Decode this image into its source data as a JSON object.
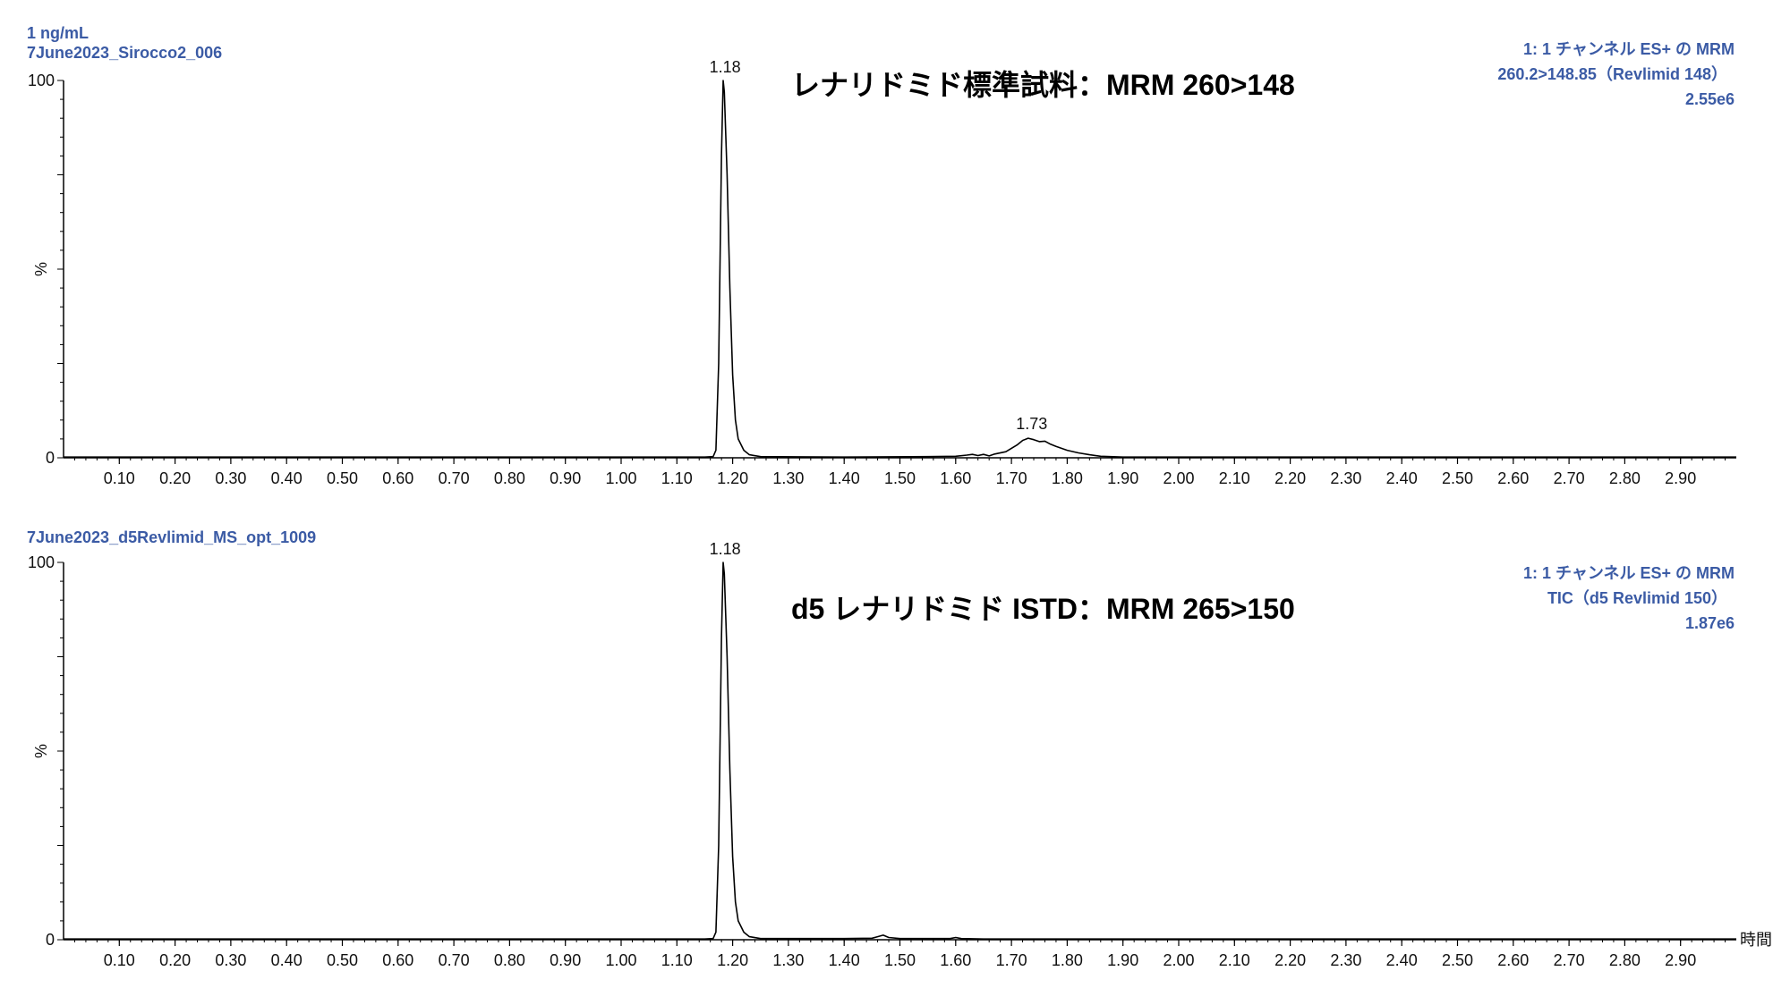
{
  "chart_data": [
    {
      "type": "line",
      "sample_line1": "1 ng/mL",
      "sample_line2": "7June2023_Sirocco2_006",
      "title": "レナリドミド標準試料：MRM 260>148",
      "info_line1": "1: 1 チャンネル ES+ の MRM",
      "info_line2": "260.2>148.85（Revlimid 148）",
      "info_line3": "2.55e6",
      "ylabel": "%",
      "xlabel": "",
      "xlim": [
        0,
        3.0
      ],
      "ylim": [
        0,
        100
      ],
      "y_ticks": [
        "0",
        "100"
      ],
      "x_ticks": [
        "0.10",
        "0.20",
        "0.30",
        "0.40",
        "0.50",
        "0.60",
        "0.70",
        "0.80",
        "0.90",
        "1.00",
        "1.10",
        "1.20",
        "1.30",
        "1.40",
        "1.50",
        "1.60",
        "1.70",
        "1.80",
        "1.90",
        "2.00",
        "2.10",
        "2.20",
        "2.30",
        "2.40",
        "2.50",
        "2.60",
        "2.70",
        "2.80",
        "2.90"
      ],
      "peak_labels": [
        {
          "x": 1.18,
          "y": 100,
          "text": "1.18"
        },
        {
          "x": 1.73,
          "y": 5.5,
          "text": "1.73"
        }
      ],
      "series": [
        {
          "x": [
            0,
            1.0,
            1.15,
            1.165,
            1.17,
            1.175,
            1.18,
            1.183,
            1.185,
            1.19,
            1.195,
            1.2,
            1.205,
            1.21,
            1.22,
            1.23,
            1.25,
            1.4,
            1.55,
            1.6,
            1.62,
            1.63,
            1.64,
            1.65,
            1.66,
            1.67,
            1.69,
            1.7,
            1.71,
            1.72,
            1.73,
            1.74,
            1.75,
            1.76,
            1.77,
            1.78,
            1.8,
            1.82,
            1.84,
            1.86,
            1.9,
            2.2,
            3.0
          ],
          "y": [
            0.2,
            0.2,
            0.2,
            0.3,
            2,
            25,
            80,
            100,
            97,
            75,
            45,
            22,
            10,
            5,
            2,
            0.8,
            0.3,
            0.2,
            0.3,
            0.4,
            0.7,
            0.9,
            0.6,
            0.9,
            0.5,
            1.0,
            1.6,
            2.5,
            3.4,
            4.6,
            5.2,
            4.8,
            4.3,
            4.4,
            3.6,
            3.0,
            2.0,
            1.3,
            0.8,
            0.4,
            0.2,
            0.2,
            0.2
          ]
        }
      ]
    },
    {
      "type": "line",
      "sample_line1": "7June2023_d5Revlimid_MS_opt_1009",
      "title": "d5 レナリドミド ISTD：MRM 265>150",
      "info_line1": "1: 1 チャンネル ES+ の MRM",
      "info_line2": "TIC（d5 Revlimid 150）",
      "info_line3": "1.87e6",
      "ylabel": "%",
      "xlabel": "時間",
      "xlim": [
        0,
        3.0
      ],
      "ylim": [
        0,
        100
      ],
      "y_ticks": [
        "0",
        "100"
      ],
      "x_ticks": [
        "0.10",
        "0.20",
        "0.30",
        "0.40",
        "0.50",
        "0.60",
        "0.70",
        "0.80",
        "0.90",
        "1.00",
        "1.10",
        "1.20",
        "1.30",
        "1.40",
        "1.50",
        "1.60",
        "1.70",
        "1.80",
        "1.90",
        "2.00",
        "2.10",
        "2.20",
        "2.30",
        "2.40",
        "2.50",
        "2.60",
        "2.70",
        "2.80",
        "2.90"
      ],
      "peak_labels": [
        {
          "x": 1.18,
          "y": 100,
          "text": "1.18"
        }
      ],
      "series": [
        {
          "x": [
            0,
            1.0,
            1.15,
            1.165,
            1.17,
            1.175,
            1.18,
            1.183,
            1.185,
            1.19,
            1.195,
            1.2,
            1.205,
            1.21,
            1.22,
            1.23,
            1.25,
            1.4,
            1.45,
            1.46,
            1.47,
            1.48,
            1.5,
            1.55,
            1.59,
            1.6,
            1.61,
            1.65,
            3.0
          ],
          "y": [
            0.2,
            0.2,
            0.2,
            0.3,
            2,
            25,
            80,
            100,
            97,
            75,
            45,
            22,
            10,
            5,
            2,
            0.8,
            0.3,
            0.3,
            0.4,
            0.8,
            1.2,
            0.6,
            0.3,
            0.3,
            0.3,
            0.6,
            0.3,
            0.2,
            0.2
          ]
        }
      ]
    }
  ]
}
